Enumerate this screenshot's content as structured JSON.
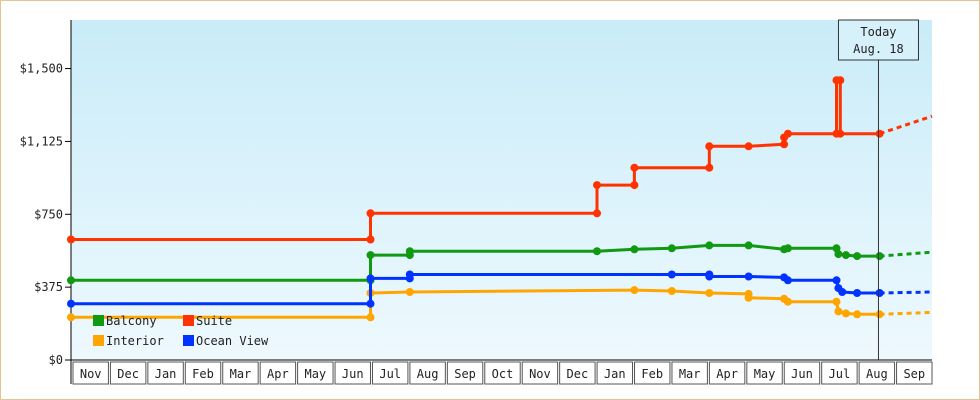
{
  "chart_data": {
    "type": "line",
    "title": "",
    "xlabel": "",
    "ylabel": "",
    "ylim": [
      0,
      1750
    ],
    "y_ticks": [
      {
        "value": 0,
        "label": "$0"
      },
      {
        "value": 375,
        "label": "$375"
      },
      {
        "value": 750,
        "label": "$750"
      },
      {
        "value": 1125,
        "label": "$1,125"
      },
      {
        "value": 1500,
        "label": "$1,500"
      }
    ],
    "xlim": [
      0,
      23
    ],
    "x_months": [
      "Nov",
      "Dec",
      "Jan",
      "Feb",
      "Mar",
      "Apr",
      "May",
      "Jun",
      "Jul",
      "Aug",
      "Sep",
      "Oct",
      "Nov",
      "Dec",
      "Jan",
      "Feb",
      "Mar",
      "Apr",
      "May",
      "Jun",
      "Jul",
      "Aug",
      "Sep"
    ],
    "grid": false,
    "background": [
      "#c9ecf8",
      "#eef9fe"
    ],
    "today_marker": {
      "label_line1": "Today",
      "label_line2": "Aug. 18",
      "x": 21.57
    },
    "legend": {
      "placement": "bottom-left"
    },
    "series": [
      {
        "name": "Suite",
        "color": "#ff3300",
        "points": [
          [
            0,
            620
          ],
          [
            8.0,
            620
          ],
          [
            8.0,
            755
          ],
          [
            14.05,
            755
          ],
          [
            14.05,
            900
          ],
          [
            15.05,
            900
          ],
          [
            15.05,
            990
          ],
          [
            17.05,
            990
          ],
          [
            17.05,
            1100
          ],
          [
            18.1,
            1100
          ],
          [
            19.05,
            1110
          ],
          [
            19.05,
            1145
          ],
          [
            19.15,
            1165
          ],
          [
            20.45,
            1165
          ],
          [
            20.45,
            1440
          ],
          [
            20.55,
            1440
          ],
          [
            20.55,
            1165
          ],
          [
            21.6,
            1165
          ]
        ],
        "markers": [
          [
            0,
            620
          ],
          [
            8.0,
            620
          ],
          [
            8.0,
            755
          ],
          [
            14.05,
            755
          ],
          [
            14.05,
            900
          ],
          [
            15.05,
            900
          ],
          [
            15.05,
            990
          ],
          [
            17.05,
            990
          ],
          [
            17.05,
            1100
          ],
          [
            18.1,
            1100
          ],
          [
            19.05,
            1110
          ],
          [
            19.05,
            1145
          ],
          [
            19.15,
            1165
          ],
          [
            20.45,
            1165
          ],
          [
            20.45,
            1440
          ],
          [
            20.55,
            1440
          ],
          [
            20.55,
            1165
          ],
          [
            21.6,
            1165
          ]
        ],
        "forecast": [
          [
            21.6,
            1165
          ],
          [
            23.0,
            1255
          ]
        ]
      },
      {
        "name": "Balcony",
        "color": "#119911",
        "points": [
          [
            0,
            410
          ],
          [
            8.0,
            410
          ],
          [
            8.0,
            540
          ],
          [
            9.05,
            540
          ],
          [
            9.05,
            560
          ],
          [
            14.05,
            560
          ],
          [
            15.05,
            570
          ],
          [
            16.05,
            575
          ],
          [
            17.05,
            590
          ],
          [
            18.1,
            590
          ],
          [
            19.05,
            570
          ],
          [
            19.15,
            575
          ],
          [
            20.45,
            575
          ],
          [
            20.5,
            545
          ],
          [
            20.7,
            540
          ],
          [
            21.0,
            535
          ],
          [
            21.6,
            535
          ]
        ],
        "markers": [
          [
            0,
            410
          ],
          [
            8.0,
            410
          ],
          [
            8.0,
            540
          ],
          [
            9.05,
            540
          ],
          [
            9.05,
            560
          ],
          [
            14.05,
            560
          ],
          [
            15.05,
            570
          ],
          [
            16.05,
            575
          ],
          [
            17.05,
            590
          ],
          [
            18.1,
            590
          ],
          [
            19.05,
            570
          ],
          [
            19.15,
            575
          ],
          [
            20.45,
            575
          ],
          [
            20.5,
            545
          ],
          [
            20.7,
            540
          ],
          [
            21.0,
            535
          ],
          [
            21.6,
            535
          ]
        ],
        "forecast": [
          [
            21.6,
            535
          ],
          [
            23.0,
            555
          ]
        ]
      },
      {
        "name": "Interior",
        "color": "#ffa500",
        "points": [
          [
            0,
            220
          ],
          [
            8.0,
            220
          ],
          [
            8.0,
            345
          ],
          [
            9.05,
            350
          ],
          [
            15.05,
            360
          ],
          [
            16.05,
            355
          ],
          [
            17.05,
            345
          ],
          [
            18.1,
            340
          ],
          [
            18.1,
            320
          ],
          [
            19.05,
            315
          ],
          [
            19.15,
            300
          ],
          [
            20.45,
            300
          ],
          [
            20.5,
            250
          ],
          [
            20.7,
            240
          ],
          [
            21.0,
            235
          ],
          [
            21.6,
            235
          ]
        ],
        "markers": [
          [
            0,
            220
          ],
          [
            8.0,
            220
          ],
          [
            8.0,
            345
          ],
          [
            9.05,
            350
          ],
          [
            15.05,
            360
          ],
          [
            16.05,
            355
          ],
          [
            17.05,
            345
          ],
          [
            18.1,
            340
          ],
          [
            18.1,
            320
          ],
          [
            19.05,
            315
          ],
          [
            19.15,
            300
          ],
          [
            20.45,
            300
          ],
          [
            20.5,
            250
          ],
          [
            20.7,
            240
          ],
          [
            21.0,
            235
          ],
          [
            21.6,
            235
          ]
        ],
        "forecast": [
          [
            21.6,
            235
          ],
          [
            23.0,
            245
          ]
        ]
      },
      {
        "name": "Ocean View",
        "color": "#0033ff",
        "points": [
          [
            0,
            290
          ],
          [
            8.0,
            290
          ],
          [
            8.0,
            420
          ],
          [
            9.05,
            420
          ],
          [
            9.05,
            440
          ],
          [
            16.05,
            440
          ],
          [
            17.05,
            440
          ],
          [
            17.05,
            430
          ],
          [
            18.1,
            430
          ],
          [
            19.05,
            425
          ],
          [
            19.15,
            410
          ],
          [
            20.45,
            410
          ],
          [
            20.5,
            370
          ],
          [
            20.6,
            350
          ],
          [
            21.0,
            345
          ],
          [
            21.6,
            345
          ]
        ],
        "markers": [
          [
            0,
            290
          ],
          [
            8.0,
            290
          ],
          [
            8.0,
            420
          ],
          [
            9.05,
            420
          ],
          [
            9.05,
            440
          ],
          [
            16.05,
            440
          ],
          [
            17.05,
            440
          ],
          [
            17.05,
            430
          ],
          [
            18.1,
            430
          ],
          [
            19.05,
            425
          ],
          [
            19.15,
            410
          ],
          [
            20.45,
            410
          ],
          [
            20.5,
            370
          ],
          [
            20.6,
            350
          ],
          [
            21.0,
            345
          ],
          [
            21.6,
            345
          ]
        ],
        "forecast": [
          [
            21.6,
            345
          ],
          [
            23.0,
            350
          ]
        ]
      }
    ]
  }
}
